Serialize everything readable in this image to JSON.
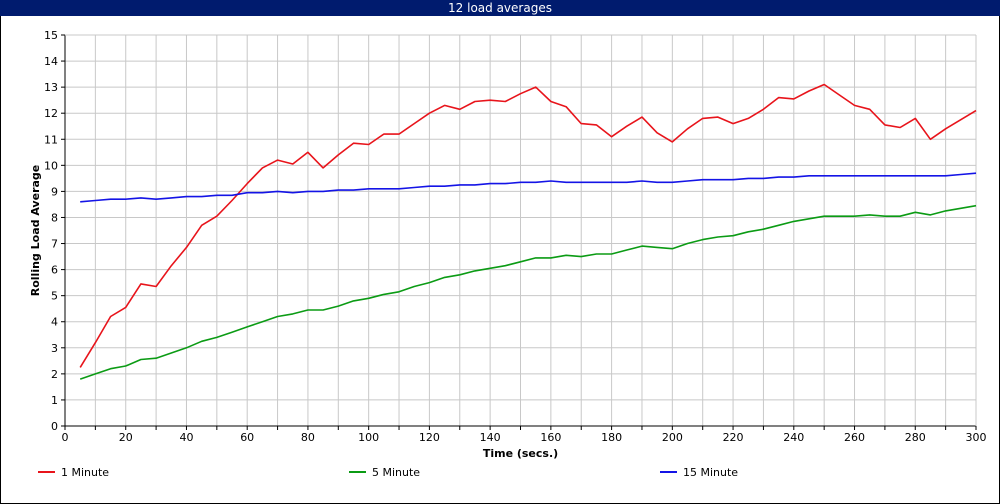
{
  "chart_data": {
    "type": "line",
    "title": "12 load averages",
    "xlabel": "Time (secs.)",
    "ylabel": "Rolling Load Average",
    "xlim": [
      0,
      300
    ],
    "ylim": [
      0,
      15
    ],
    "x_ticks": [
      0,
      20,
      40,
      60,
      80,
      100,
      120,
      140,
      160,
      180,
      200,
      220,
      240,
      260,
      280,
      300
    ],
    "y_ticks": [
      0,
      1,
      2,
      3,
      4,
      5,
      6,
      7,
      8,
      9,
      10,
      11,
      12,
      13,
      14,
      15
    ],
    "x_minor_step": 10,
    "grid": true,
    "legend_position": "bottom",
    "x": [
      5,
      10,
      15,
      20,
      25,
      30,
      35,
      40,
      45,
      50,
      55,
      60,
      65,
      70,
      75,
      80,
      85,
      90,
      95,
      100,
      105,
      110,
      115,
      120,
      125,
      130,
      135,
      140,
      145,
      150,
      155,
      160,
      165,
      170,
      175,
      180,
      185,
      190,
      195,
      200,
      205,
      210,
      215,
      220,
      225,
      230,
      235,
      240,
      245,
      250,
      255,
      260,
      265,
      270,
      275,
      280,
      285,
      290,
      295,
      300
    ],
    "series": [
      {
        "name": "1 Minute",
        "color": "#e8141b",
        "values": [
          2.25,
          3.2,
          4.2,
          4.55,
          5.45,
          5.35,
          6.15,
          6.85,
          7.7,
          8.05,
          8.65,
          9.3,
          9.9,
          10.2,
          10.05,
          10.5,
          9.9,
          10.4,
          10.85,
          10.8,
          11.2,
          11.2,
          11.6,
          12.0,
          12.3,
          12.15,
          12.45,
          12.5,
          12.45,
          12.75,
          13.0,
          12.45,
          12.25,
          11.6,
          11.55,
          11.1,
          11.5,
          11.85,
          11.25,
          10.9,
          11.4,
          11.8,
          11.85,
          11.6,
          11.8,
          12.15,
          12.6,
          12.55,
          12.85,
          13.1,
          12.7,
          12.3,
          12.15,
          11.55,
          11.45,
          11.8,
          11.0,
          11.4,
          11.75,
          12.1
        ]
      },
      {
        "name": "5 Minute",
        "color": "#0b9b14",
        "values": [
          1.8,
          2.0,
          2.2,
          2.3,
          2.55,
          2.6,
          2.8,
          3.0,
          3.25,
          3.4,
          3.6,
          3.8,
          4.0,
          4.2,
          4.3,
          4.45,
          4.45,
          4.6,
          4.8,
          4.9,
          5.05,
          5.15,
          5.35,
          5.5,
          5.7,
          5.8,
          5.95,
          6.05,
          6.15,
          6.3,
          6.45,
          6.45,
          6.55,
          6.5,
          6.6,
          6.6,
          6.75,
          6.9,
          6.85,
          6.8,
          7.0,
          7.15,
          7.25,
          7.3,
          7.45,
          7.55,
          7.7,
          7.85,
          7.95,
          8.05,
          8.05,
          8.05,
          8.1,
          8.05,
          8.05,
          8.2,
          8.1,
          8.25,
          8.35,
          8.45
        ]
      },
      {
        "name": "15 Minute",
        "color": "#1414e6",
        "values": [
          8.6,
          8.65,
          8.7,
          8.7,
          8.75,
          8.7,
          8.75,
          8.8,
          8.8,
          8.85,
          8.85,
          8.95,
          8.95,
          9.0,
          8.95,
          9.0,
          9.0,
          9.05,
          9.05,
          9.1,
          9.1,
          9.1,
          9.15,
          9.2,
          9.2,
          9.25,
          9.25,
          9.3,
          9.3,
          9.35,
          9.35,
          9.4,
          9.35,
          9.35,
          9.35,
          9.35,
          9.35,
          9.4,
          9.35,
          9.35,
          9.4,
          9.45,
          9.45,
          9.45,
          9.5,
          9.5,
          9.55,
          9.55,
          9.6,
          9.6,
          9.6,
          9.6,
          9.6,
          9.6,
          9.6,
          9.6,
          9.6,
          9.6,
          9.65,
          9.7
        ]
      }
    ]
  },
  "colors": {
    "title_background": "#001b6e",
    "title_text": "#ffffff",
    "grid": "#c8c8c8",
    "axis": "#000000"
  }
}
